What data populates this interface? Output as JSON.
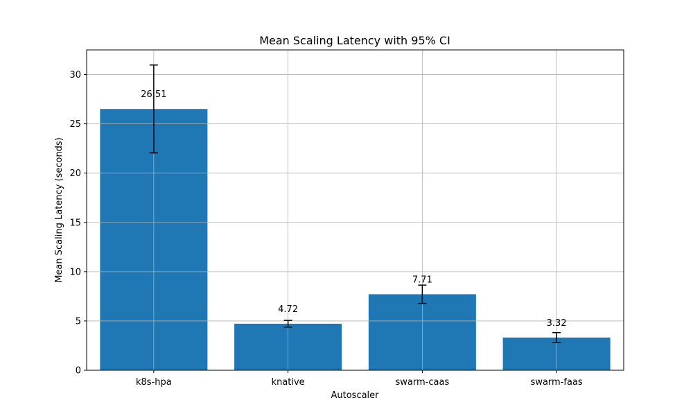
{
  "chart_data": {
    "type": "bar",
    "title": "Mean Scaling Latency with 95% CI",
    "xlabel": "Autoscaler",
    "ylabel": "Mean Scaling Latency (seconds)",
    "categories": [
      "k8s-hpa",
      "knative",
      "swarm-caas",
      "swarm-faas"
    ],
    "values": [
      26.51,
      4.72,
      7.71,
      3.32
    ],
    "data_labels": [
      "26.51",
      "4.72",
      "7.71",
      "3.32"
    ],
    "error_low": [
      22.05,
      4.38,
      6.78,
      2.82
    ],
    "error_high": [
      30.97,
      5.06,
      8.64,
      3.82
    ],
    "ylim": [
      0,
      32.5
    ],
    "yticks": [
      0,
      5,
      10,
      15,
      20,
      25,
      30
    ],
    "ytick_labels": [
      "0",
      "5",
      "10",
      "15",
      "20",
      "25",
      "30"
    ],
    "grid": true,
    "bar_color": "#1f77b4",
    "error_color": "#000000",
    "grid_color": "#b0b0b0"
  }
}
